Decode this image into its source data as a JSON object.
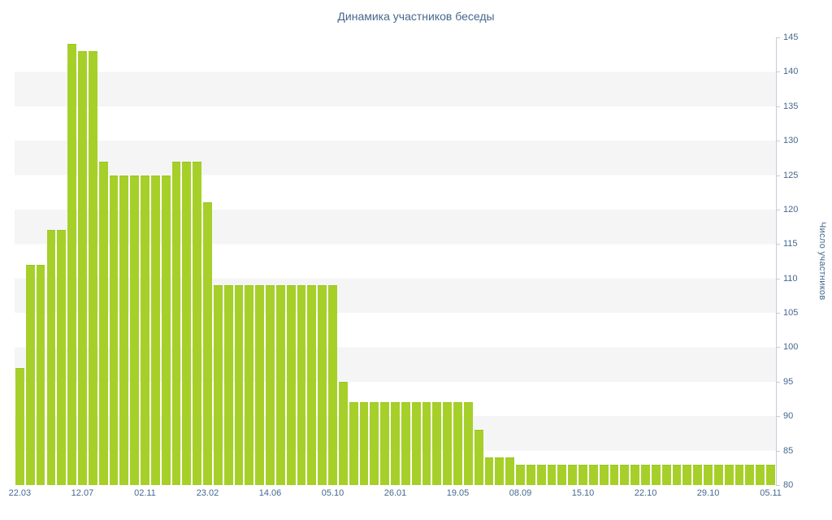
{
  "colors": {
    "bar": "#a6d029",
    "bar_border": "#9ac41f",
    "axis_text": "#45688e",
    "axis_line": "#c5ccd6",
    "stripe": "#f5f5f5"
  },
  "chart_data": {
    "type": "bar",
    "title": "Динамика участников беседы",
    "xlabel": "",
    "ylabel": "Число участников",
    "ylim": [
      80,
      145
    ],
    "grid": "horizontal-stripes",
    "legend": "none",
    "yticks": [
      145,
      140,
      135,
      130,
      125,
      120,
      115,
      110,
      105,
      100,
      95,
      90,
      85,
      80
    ],
    "xticks": [
      "22.03",
      "12.07",
      "02.11",
      "23.02",
      "14.06",
      "05.10",
      "26.01",
      "19.05",
      "08.09",
      "15.10",
      "22.10",
      "29.10",
      "05.11"
    ],
    "values": [
      97,
      112,
      112,
      117,
      117,
      144,
      143,
      143,
      127,
      125,
      125,
      125,
      125,
      125,
      125,
      127,
      127,
      127,
      121,
      109,
      109,
      109,
      109,
      109,
      109,
      109,
      109,
      109,
      109,
      109,
      109,
      95,
      92,
      92,
      92,
      92,
      92,
      92,
      92,
      92,
      92,
      92,
      92,
      92,
      88,
      84,
      84,
      84,
      83,
      83,
      83,
      83,
      83,
      83,
      83,
      83,
      83,
      83,
      83,
      83,
      83,
      83,
      83,
      83,
      83,
      83,
      83,
      83,
      83,
      83,
      83,
      83,
      83
    ]
  }
}
